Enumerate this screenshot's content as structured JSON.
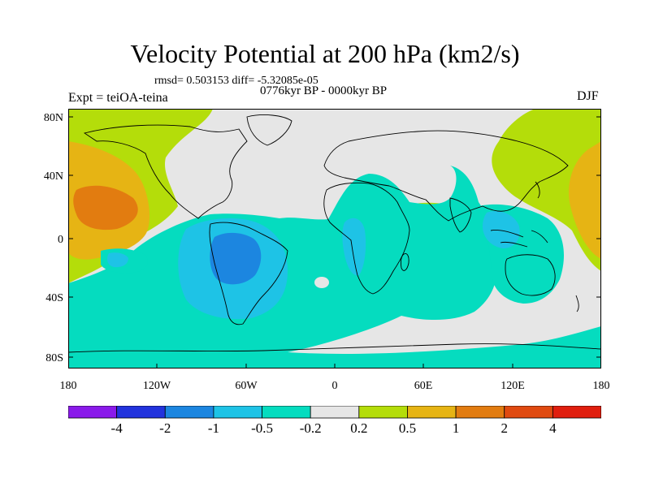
{
  "title": "Velocity Potential at 200 hPa (km2/s)",
  "stats": "rmsd= 0.503153 diff= -5.32085e-05",
  "period": "0776kyr BP - 0000kyr BP",
  "experiment": "Expt = teiOA-teina",
  "season": "DJF",
  "lat_labels": [
    "80N",
    "40N",
    "0",
    "40S",
    "80S"
  ],
  "lon_labels": [
    "180",
    "120W",
    "60W",
    "0",
    "60E",
    "120E",
    "180"
  ],
  "colorbar": {
    "labels": [
      "-4",
      "-2",
      "-1",
      "-0.5",
      "-0.2",
      "0.2",
      "0.5",
      "1",
      "2",
      "4"
    ],
    "colors": [
      "#8a1aea",
      "#2233dd",
      "#1c86e0",
      "#1ec3e6",
      "#05dcbf",
      "#e6e6e6",
      "#b4dd0a",
      "#e6b414",
      "#e27c10",
      "#e04a10",
      "#e01e0e"
    ]
  },
  "map_colors": {
    "neutral": "#e6e6e6",
    "teal": "#05dcbf",
    "light_blue": "#1ec3e6",
    "blue": "#1c86e0",
    "green": "#b4dd0a",
    "yellow": "#e6b414",
    "orange": "#e27c10"
  }
}
